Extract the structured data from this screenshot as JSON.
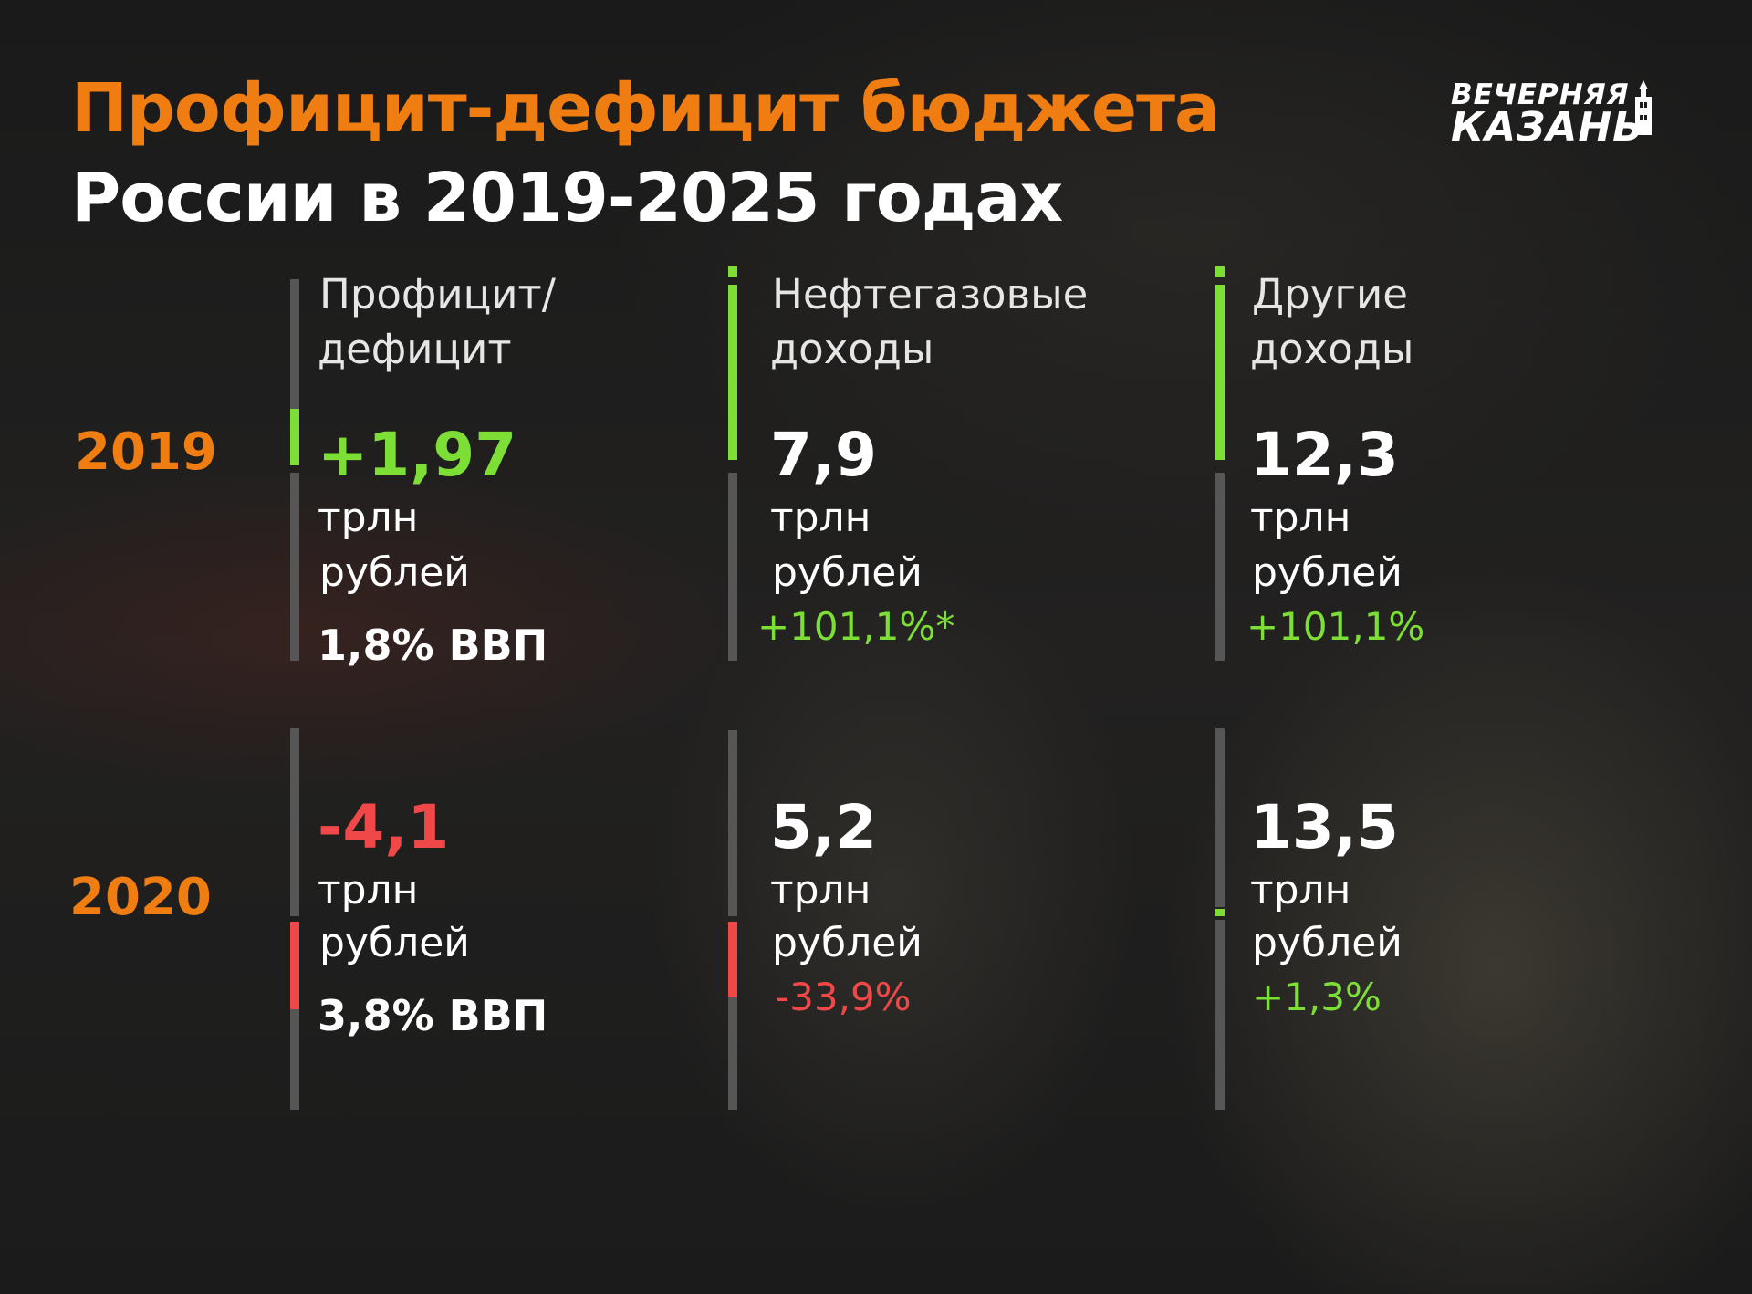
{
  "title_line1": "Профицит-дефицит бюджета",
  "title_line2": "России в 2019-2025 годах",
  "logo": {
    "line1": "ВЕЧЕРНЯЯ",
    "line2": "КАЗАНЬ"
  },
  "columns": {
    "balance": "Профицит/\nдефицит",
    "balance_l1": "Профицит/",
    "balance_l2": "дефицит",
    "oil_l1": "Нефтегазовые",
    "oil_l2": "доходы",
    "other_l1": "Другие",
    "other_l2": "доходы"
  },
  "unit_line1": "трлн",
  "unit_line2": "рублей",
  "rows": [
    {
      "year": "2019",
      "balance": {
        "value": "+1,97",
        "gdp": "1,8% ВВП"
      },
      "oil": {
        "value": "7,9",
        "change": "+101,1%*"
      },
      "other": {
        "value": "12,3",
        "change": "+101,1%"
      }
    },
    {
      "year": "2020",
      "balance": {
        "value": "-4,1",
        "gdp": "3,8% ВВП"
      },
      "oil": {
        "value": "5,2",
        "change": "-33,9%"
      },
      "other": {
        "value": "13,5",
        "change": "+1,3%"
      }
    }
  ],
  "colors": {
    "accent": "#f07d12",
    "positive": "#7ddf35",
    "negative": "#f04848",
    "neutral": "#565656"
  }
}
